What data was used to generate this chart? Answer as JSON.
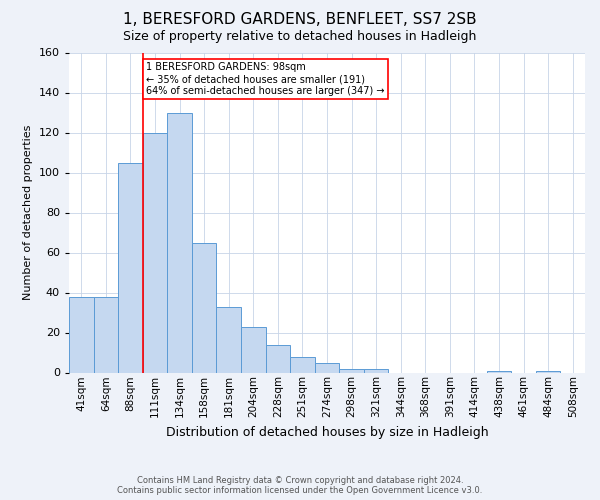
{
  "title": "1, BERESFORD GARDENS, BENFLEET, SS7 2SB",
  "subtitle": "Size of property relative to detached houses in Hadleigh",
  "xlabel": "Distribution of detached houses by size in Hadleigh",
  "ylabel": "Number of detached properties",
  "footer_line1": "Contains HM Land Registry data © Crown copyright and database right 2024.",
  "footer_line2": "Contains public sector information licensed under the Open Government Licence v3.0.",
  "bins": [
    "41sqm",
    "64sqm",
    "88sqm",
    "111sqm",
    "134sqm",
    "158sqm",
    "181sqm",
    "204sqm",
    "228sqm",
    "251sqm",
    "274sqm",
    "298sqm",
    "321sqm",
    "344sqm",
    "368sqm",
    "391sqm",
    "414sqm",
    "438sqm",
    "461sqm",
    "484sqm",
    "508sqm"
  ],
  "values": [
    38,
    38,
    105,
    120,
    130,
    65,
    33,
    23,
    14,
    8,
    5,
    2,
    2,
    0,
    0,
    0,
    0,
    1,
    0,
    1,
    0
  ],
  "bar_color": "#c5d8f0",
  "bar_edge_color": "#5b9bd5",
  "red_line_index": 2.5,
  "annotation_text": "1 BERESFORD GARDENS: 98sqm\n← 35% of detached houses are smaller (191)\n64% of semi-detached houses are larger (347) →",
  "annotation_box_color": "white",
  "annotation_box_edge_color": "red",
  "red_line_color": "red",
  "ylim": [
    0,
    160
  ],
  "yticks": [
    0,
    20,
    40,
    60,
    80,
    100,
    120,
    140,
    160
  ],
  "bg_color": "#eef2f9",
  "plot_bg_color": "white",
  "title_fontsize": 11,
  "subtitle_fontsize": 9,
  "ylabel_fontsize": 8,
  "xlabel_fontsize": 9,
  "tick_fontsize": 7.5,
  "ytick_fontsize": 8,
  "footer_fontsize": 6,
  "annotation_fontsize": 7
}
